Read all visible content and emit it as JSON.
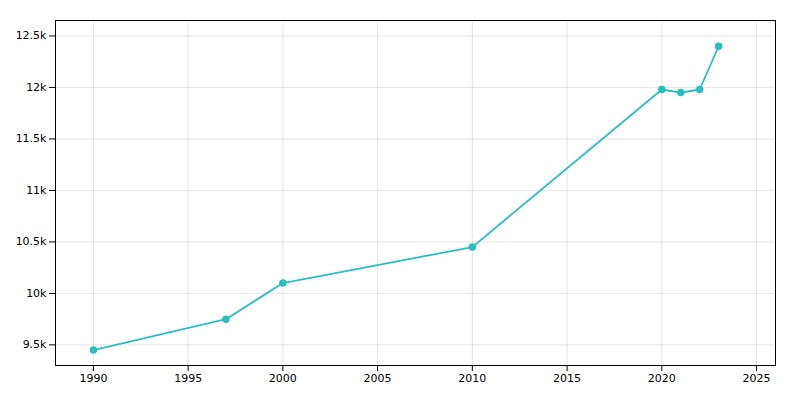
{
  "chart_data": {
    "type": "line",
    "x": [
      1990,
      1997,
      2000,
      2010,
      2020,
      2021,
      2022,
      2023
    ],
    "values": [
      9450,
      9750,
      10100,
      10450,
      11980,
      11950,
      11980,
      12400
    ],
    "color": "#2abfbf",
    "marker": "circle",
    "xlim": [
      1988,
      2026
    ],
    "xticks": [
      1990,
      1995,
      2000,
      2005,
      2010,
      2015,
      2020,
      2025
    ],
    "ylim": [
      9300,
      12650
    ],
    "yticks": [
      {
        "value": 9500,
        "label": "9.5k"
      },
      {
        "value": 10000,
        "label": "10k"
      },
      {
        "value": 10500,
        "label": "10.5k"
      },
      {
        "value": 11000,
        "label": "11k"
      },
      {
        "value": 11500,
        "label": "11.5k"
      },
      {
        "value": 12000,
        "label": "12k"
      },
      {
        "value": 12500,
        "label": "12.5k"
      }
    ],
    "grid": true
  }
}
